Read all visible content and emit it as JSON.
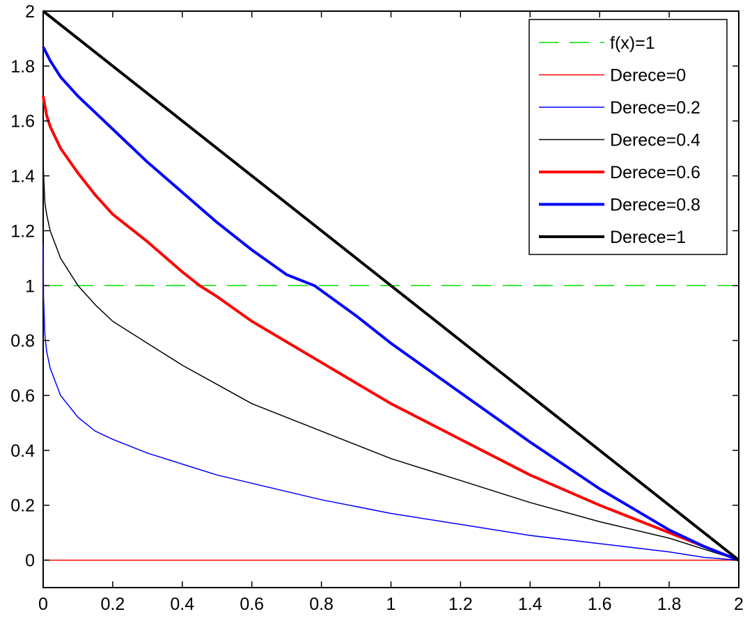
{
  "chart_data": {
    "type": "line",
    "title": "",
    "xlabel": "",
    "ylabel": "",
    "xlim": [
      0,
      2
    ],
    "ylim": [
      -0.1,
      2
    ],
    "xticks": [
      0,
      0.2,
      0.4,
      0.6,
      0.8,
      1,
      1.2,
      1.4,
      1.6,
      1.8,
      2
    ],
    "xtick_labels": [
      "0",
      "0.2",
      "0.4",
      "0.6",
      "0.8",
      "1",
      "1.2",
      "1.4",
      "1.6",
      "1.8",
      "2"
    ],
    "yticks": [
      0,
      0.2,
      0.4,
      0.6,
      0.8,
      1,
      1.2,
      1.4,
      1.6,
      1.8,
      2
    ],
    "ytick_labels": [
      "0",
      "0.2",
      "0.4",
      "0.6",
      "0.8",
      "1",
      "1.2",
      "1.4",
      "1.6",
      "1.8",
      "2"
    ],
    "grid": false,
    "legend_position": "top-right",
    "series": [
      {
        "name": "f(x)=1",
        "color": "#00e000",
        "style": "dashed",
        "width": "thin",
        "x": [
          0,
          2
        ],
        "y": [
          1,
          1
        ]
      },
      {
        "name": "Derece=0",
        "color": "#ff0000",
        "style": "solid",
        "width": "thin",
        "x": [
          0,
          2
        ],
        "y": [
          0,
          0
        ]
      },
      {
        "name": "Derece=0.2",
        "color": "#0000ff",
        "style": "solid",
        "width": "thin",
        "x": [
          0,
          0.001,
          0.005,
          0.01,
          0.02,
          0.05,
          0.1,
          0.15,
          0.2,
          0.3,
          0.4,
          0.5,
          0.6,
          0.8,
          1.0,
          1.2,
          1.4,
          1.6,
          1.8,
          1.9,
          2.0
        ],
        "y": [
          1.15,
          0.96,
          0.82,
          0.76,
          0.7,
          0.6,
          0.52,
          0.47,
          0.44,
          0.39,
          0.35,
          0.31,
          0.28,
          0.22,
          0.17,
          0.13,
          0.09,
          0.06,
          0.03,
          0.01,
          0
        ]
      },
      {
        "name": "Derece=0.4",
        "color": "#000000",
        "style": "solid",
        "width": "thin",
        "x": [
          0,
          0.005,
          0.01,
          0.02,
          0.05,
          0.1,
          0.15,
          0.2,
          0.3,
          0.4,
          0.5,
          0.6,
          0.8,
          1.0,
          1.2,
          1.4,
          1.6,
          1.8,
          1.9,
          2.0
        ],
        "y": [
          1.44,
          1.3,
          1.26,
          1.2,
          1.1,
          1.0,
          0.93,
          0.87,
          0.79,
          0.71,
          0.64,
          0.57,
          0.47,
          0.37,
          0.29,
          0.21,
          0.14,
          0.08,
          0.04,
          0
        ]
      },
      {
        "name": "Derece=0.6",
        "color": "#ff0000",
        "style": "solid",
        "width": "thick",
        "x": [
          0,
          0.01,
          0.02,
          0.05,
          0.1,
          0.15,
          0.2,
          0.3,
          0.4,
          0.45,
          0.5,
          0.6,
          0.8,
          1.0,
          1.2,
          1.4,
          1.6,
          1.8,
          1.9,
          2.0
        ],
        "y": [
          1.69,
          1.62,
          1.58,
          1.5,
          1.41,
          1.33,
          1.26,
          1.16,
          1.05,
          1.0,
          0.96,
          0.87,
          0.72,
          0.57,
          0.44,
          0.31,
          0.2,
          0.1,
          0.05,
          0
        ]
      },
      {
        "name": "Derece=0.8",
        "color": "#0000ff",
        "style": "solid",
        "width": "thick",
        "x": [
          0,
          0.02,
          0.05,
          0.1,
          0.2,
          0.3,
          0.4,
          0.5,
          0.6,
          0.7,
          0.78,
          0.9,
          1.0,
          1.2,
          1.4,
          1.6,
          1.8,
          1.9,
          2.0
        ],
        "y": [
          1.87,
          1.82,
          1.76,
          1.69,
          1.57,
          1.45,
          1.34,
          1.23,
          1.13,
          1.04,
          1.0,
          0.89,
          0.79,
          0.61,
          0.43,
          0.26,
          0.11,
          0.05,
          0
        ]
      },
      {
        "name": "Derece=1",
        "color": "#000000",
        "style": "solid",
        "width": "thick",
        "x": [
          0,
          1,
          2
        ],
        "y": [
          2,
          1,
          0
        ]
      }
    ]
  }
}
